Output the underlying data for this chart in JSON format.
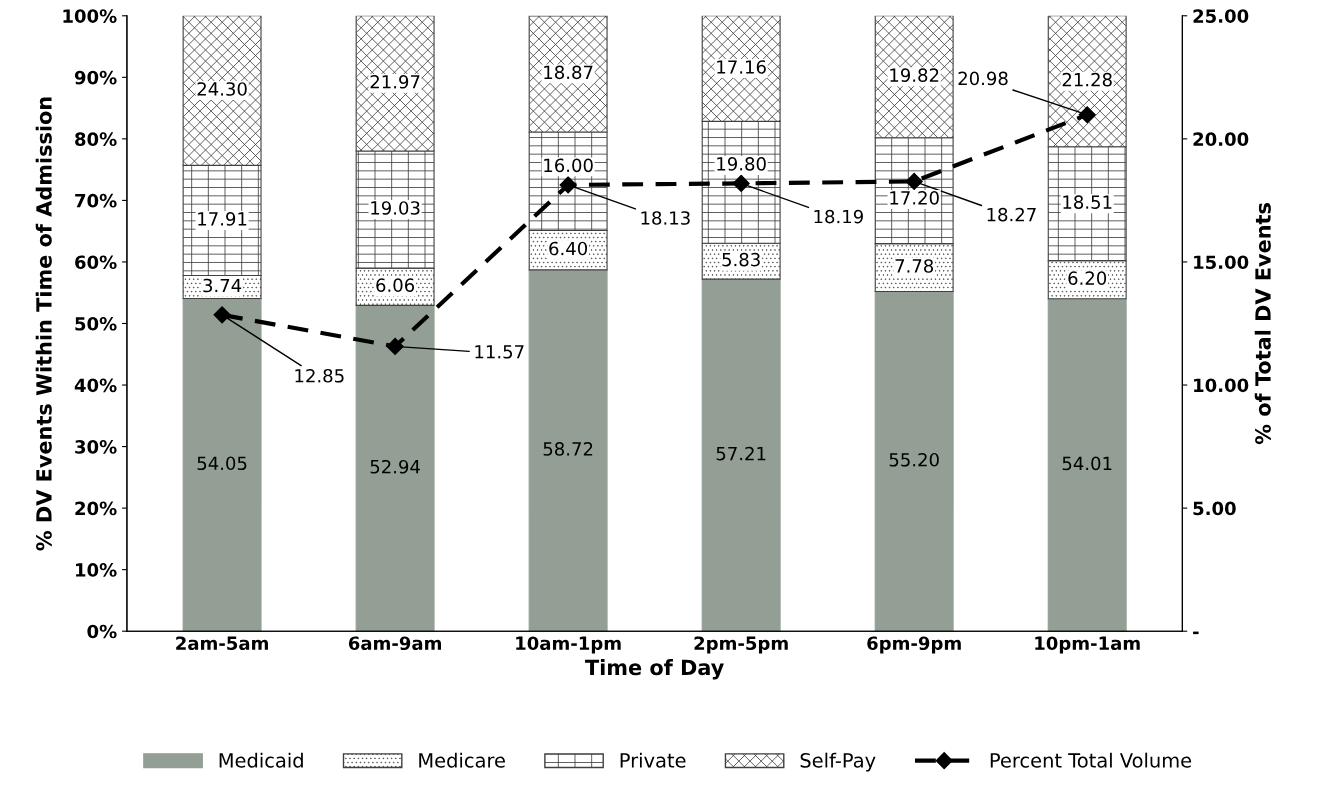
{
  "chart_data": {
    "type": "bar",
    "stacked": true,
    "xlabel": "Time of Day",
    "ylabel": "% DV Events Within Time of Admission",
    "y2label": "% of Total DV Events",
    "categories": [
      "2am-5am",
      "6am-9am",
      "10am-1pm",
      "2pm-5pm",
      "6pm-9pm",
      "10pm-1am"
    ],
    "series": [
      {
        "name": "Medicaid",
        "color": "#939f94",
        "values": [
          54.05,
          52.94,
          58.72,
          57.21,
          55.2,
          54.01
        ],
        "value_labels": [
          "54.05",
          "52.94",
          "58.72",
          "57.21",
          "55.20",
          "54.01"
        ]
      },
      {
        "name": "Medicare",
        "color": "#404040",
        "values": [
          3.74,
          6.06,
          6.4,
          5.83,
          7.78,
          6.2
        ],
        "value_labels": [
          "3.74",
          "6.06",
          "6.40",
          "5.83",
          "7.78",
          "6.20"
        ]
      },
      {
        "name": "Private",
        "color": "#404040",
        "values": [
          17.91,
          19.03,
          16.0,
          19.8,
          17.2,
          18.51
        ],
        "value_labels": [
          "17.91",
          "19.03",
          "16.00",
          "19.80",
          "17.20",
          "18.51"
        ]
      },
      {
        "name": "Self-Pay",
        "color": "#404040",
        "values": [
          24.3,
          21.97,
          18.87,
          17.16,
          19.82,
          21.28
        ],
        "value_labels": [
          "24.30",
          "21.97",
          "18.87",
          "17.16",
          "19.82",
          "21.28"
        ]
      },
      {
        "name": "Percent Total Volume",
        "type": "line",
        "axis": "y2",
        "color": "#000000",
        "marker": "diamond",
        "line_style": "dashed",
        "values": [
          12.85,
          11.57,
          18.13,
          18.19,
          18.27,
          20.98
        ],
        "value_labels": [
          "12.85",
          "11.57",
          "18.13",
          "18.19",
          "18.27",
          "20.98"
        ]
      }
    ],
    "ylim": [
      0,
      100
    ],
    "yticks": [
      {
        "value": 0,
        "label": "0%"
      },
      {
        "value": 10,
        "label": "10%"
      },
      {
        "value": 20,
        "label": "20%"
      },
      {
        "value": 30,
        "label": "30%"
      },
      {
        "value": 40,
        "label": "40%"
      },
      {
        "value": 50,
        "label": "50%"
      },
      {
        "value": 60,
        "label": "60%"
      },
      {
        "value": 70,
        "label": "70%"
      },
      {
        "value": 80,
        "label": "80%"
      },
      {
        "value": 90,
        "label": "90%"
      },
      {
        "value": 100,
        "label": "100%"
      }
    ],
    "y2lim": [
      0,
      25
    ],
    "y2ticks": [
      {
        "value": 0,
        "label": "-"
      },
      {
        "value": 5,
        "label": "5.00"
      },
      {
        "value": 10,
        "label": "10.00"
      },
      {
        "value": 15,
        "label": "15.00"
      },
      {
        "value": 20,
        "label": "20.00"
      },
      {
        "value": 25,
        "label": "25.00"
      }
    ],
    "grid": false,
    "legend": "bottom"
  }
}
